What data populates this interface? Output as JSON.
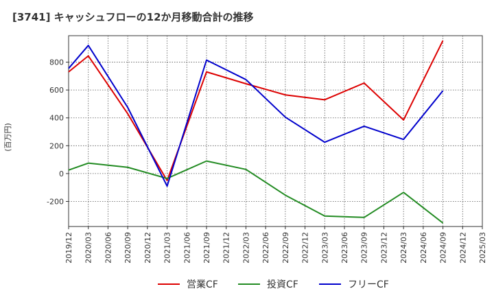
{
  "chart_data": {
    "type": "line",
    "title": "[3741]  キャッシュフローの12か月移動合計の推移",
    "ylabel": "(百万円)",
    "xlabel": "",
    "categories": [
      "2019/12",
      "2020/03",
      "2020/06",
      "2020/09",
      "2020/12",
      "2021/03",
      "2021/06",
      "2021/09",
      "2021/12",
      "2022/03",
      "2022/06",
      "2022/09",
      "2022/12",
      "2023/03",
      "2023/06",
      "2023/09",
      "2023/12",
      "2024/03",
      "2024/06",
      "2024/09",
      "2024/12",
      "2025/03"
    ],
    "ylim": [
      -380,
      990
    ],
    "yticks": [
      -200,
      0,
      200,
      400,
      600,
      800
    ],
    "grid": true,
    "legend_position": "bottom",
    "series": [
      {
        "name": "営業CF",
        "color": "#dd0000",
        "values": [
          730,
          845,
          null,
          430,
          null,
          -50,
          null,
          730,
          null,
          645,
          null,
          565,
          null,
          530,
          null,
          650,
          null,
          385,
          null,
          955,
          null,
          null
        ]
      },
      {
        "name": "投資CF",
        "color": "#228b22",
        "values": [
          25,
          75,
          null,
          45,
          null,
          -35,
          null,
          90,
          null,
          30,
          null,
          -155,
          null,
          -305,
          null,
          -315,
          null,
          -135,
          null,
          -355,
          null,
          null
        ]
      },
      {
        "name": "フリーCF",
        "color": "#0000cc",
        "values": [
          755,
          920,
          null,
          475,
          null,
          -90,
          null,
          815,
          null,
          675,
          null,
          405,
          null,
          225,
          null,
          340,
          null,
          245,
          null,
          595,
          null,
          null
        ]
      }
    ]
  }
}
